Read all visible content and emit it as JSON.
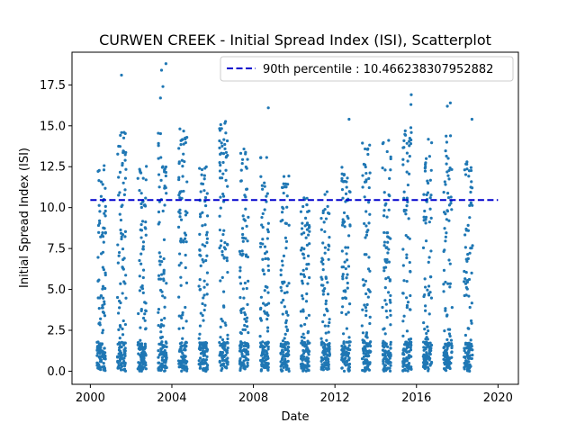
{
  "chart_data": {
    "type": "scatter",
    "title": "CURWEN CREEK - Initial Spread Index (ISI), Scatterplot",
    "xlabel": "Date",
    "ylabel": "Initial Spread Index (ISI)",
    "xlim": [
      1999.1,
      2021.0
    ],
    "ylim": [
      -0.8,
      19.5
    ],
    "x_ticks": [
      "2000",
      "2004",
      "2008",
      "2012",
      "2016",
      "2020"
    ],
    "y_ticks": [
      "0.0",
      "2.5",
      "5.0",
      "7.5",
      "10.0",
      "12.5",
      "15.0",
      "17.5"
    ],
    "grid": false,
    "legend_position": "top-right",
    "colors": {
      "points": "#1f77b4",
      "threshold": "#0000cc",
      "axes": "#000000"
    },
    "threshold": {
      "label": "90th percentile : 10.466238307952882",
      "value": 10.466238307952882,
      "x_range": [
        2000,
        2020
      ]
    },
    "seasons": [
      {
        "year": 2000,
        "max": 12.6,
        "extreme": []
      },
      {
        "year": 2001,
        "max": 15.1,
        "extreme": [
          18.1
        ]
      },
      {
        "year": 2002,
        "max": 12.9,
        "extreme": []
      },
      {
        "year": 2003,
        "max": 15.0,
        "extreme": [
          16.7,
          17.4,
          18.4,
          18.8
        ]
      },
      {
        "year": 2004,
        "max": 15.0,
        "extreme": []
      },
      {
        "year": 2005,
        "max": 12.6,
        "extreme": []
      },
      {
        "year": 2006,
        "max": 15.5,
        "extreme": []
      },
      {
        "year": 2007,
        "max": 13.7,
        "extreme": []
      },
      {
        "year": 2008,
        "max": 13.1,
        "extreme": [
          16.1
        ]
      },
      {
        "year": 2009,
        "max": 12.4,
        "extreme": []
      },
      {
        "year": 2010,
        "max": 10.6,
        "extreme": []
      },
      {
        "year": 2011,
        "max": 11.2,
        "extreme": []
      },
      {
        "year": 2012,
        "max": 12.5,
        "extreme": [
          15.4
        ]
      },
      {
        "year": 2013,
        "max": 14.1,
        "extreme": []
      },
      {
        "year": 2014,
        "max": 14.2,
        "extreme": []
      },
      {
        "year": 2015,
        "max": 15.3,
        "extreme": [
          16.3,
          16.9
        ]
      },
      {
        "year": 2016,
        "max": 14.3,
        "extreme": []
      },
      {
        "year": 2017,
        "max": 14.6,
        "extreme": [
          16.2,
          16.4
        ]
      },
      {
        "year": 2018,
        "max": 13.1,
        "extreme": [
          15.4
        ]
      }
    ],
    "season_fraction_range": [
      0.33,
      0.75
    ],
    "points_per_season": 130
  }
}
